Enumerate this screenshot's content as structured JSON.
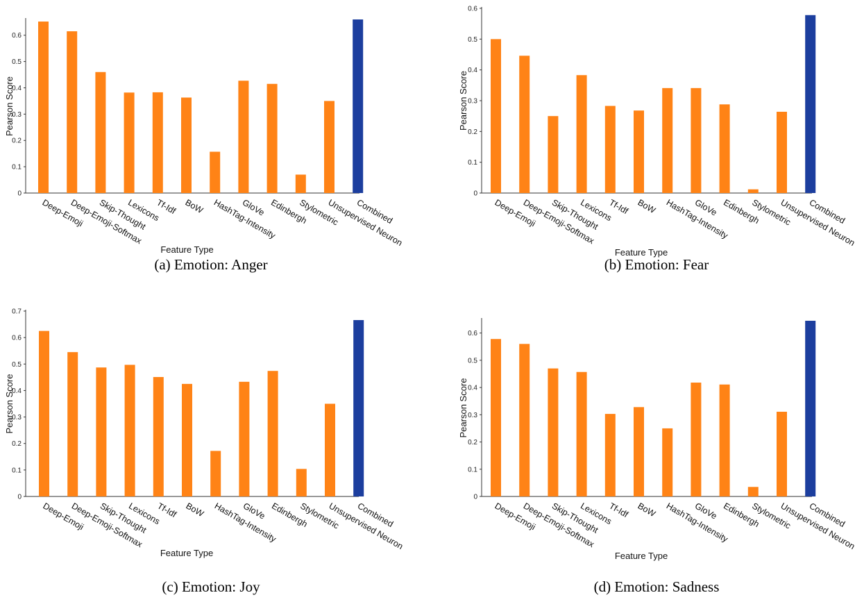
{
  "colors": {
    "feature_bar": "#FF8316",
    "combined_bar": "#1C3E9E",
    "axis": "#333333"
  },
  "chart_data": [
    {
      "type": "bar",
      "caption": "(a) Emotion: Anger",
      "xlabel": "Feature Type",
      "ylabel": "Pearson Score",
      "ylim": [
        0,
        0.66
      ],
      "yticks": [
        "0",
        "0.1",
        "0.2",
        "0.3",
        "0.4",
        "0.5",
        "0.6"
      ],
      "categories": [
        "Deep-Emoji",
        "Deep-Emoji-Softmax",
        "Skip-Thought",
        "Lexicons",
        "Tf-Idf",
        "BoW",
        "HashTag-Intensity",
        "GloVe",
        "Edinbergh",
        "Stylometric",
        "Unsupervised Neuron",
        "Combined"
      ],
      "values": [
        0.652,
        0.615,
        0.46,
        0.382,
        0.383,
        0.363,
        0.157,
        0.427,
        0.415,
        0.07,
        0.35,
        0.66
      ]
    },
    {
      "type": "bar",
      "caption": "(b) Emotion: Fear",
      "xlabel": "Feature Type",
      "ylabel": "Pearson Score",
      "ylim": [
        0,
        0.6
      ],
      "yticks": [
        "0",
        "0.1",
        "0.2",
        "0.3",
        "0.4",
        "0.5",
        "0.6"
      ],
      "categories": [
        "Deep-Emoji",
        "Deep-Emoji-Softmax",
        "Skip-Thought",
        "Lexicons",
        "Tf-Idf",
        "BoW",
        "HashTag-Intensity",
        "GloVe",
        "Edinbergh",
        "Stylometric",
        "Unsupervised Neuron",
        "Combined"
      ],
      "values": [
        0.5,
        0.446,
        0.25,
        0.383,
        0.283,
        0.268,
        0.341,
        0.341,
        0.288,
        0.012,
        0.264,
        0.578
      ]
    },
    {
      "type": "bar",
      "caption": "(c) Emotion: Joy",
      "xlabel": "Feature Type",
      "ylabel": "Pearson Score",
      "ylim": [
        0,
        0.7
      ],
      "yticks": [
        "0",
        "0.1",
        "0.2",
        "0.3",
        "0.4",
        "0.5",
        "0.6",
        "0.7"
      ],
      "categories": [
        "Deep-Emoji",
        "Deep-Emoji-Softmax",
        "Skip-Thought",
        "Lexicons",
        "Tf-Idf",
        "BoW",
        "HashTag-Intensity",
        "GloVe",
        "Edinbergh",
        "Stylometric",
        "Unsupervised Neuron",
        "Combined"
      ],
      "values": [
        0.625,
        0.545,
        0.487,
        0.497,
        0.451,
        0.425,
        0.172,
        0.433,
        0.474,
        0.104,
        0.35,
        0.666
      ]
    },
    {
      "type": "bar",
      "caption": "(d) Emotion: Sadness",
      "xlabel": "Feature Type",
      "ylabel": "Pearson Score",
      "ylim": [
        0,
        0.65
      ],
      "yticks": [
        "0",
        "0.1",
        "0.2",
        "0.3",
        "0.4",
        "0.5",
        "0.6"
      ],
      "categories": [
        "Deep-Emoji",
        "Deep-Emoji-Softmax",
        "Skip-Thought",
        "Lexicons",
        "Tf-Idf",
        "BoW",
        "HashTag-Intensity",
        "GloVe",
        "Edinbergh",
        "Stylometric",
        "Unsupervised Neuron",
        "Combined"
      ],
      "values": [
        0.578,
        0.56,
        0.47,
        0.457,
        0.303,
        0.328,
        0.25,
        0.418,
        0.411,
        0.035,
        0.311,
        0.645
      ]
    }
  ]
}
